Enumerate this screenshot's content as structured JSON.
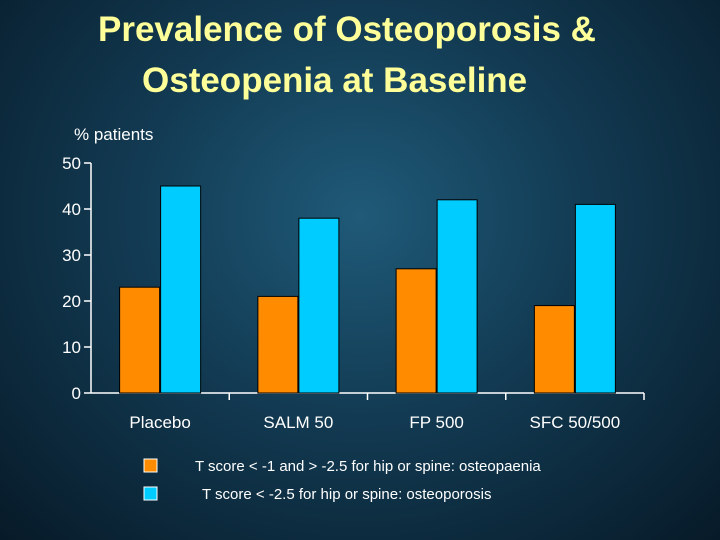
{
  "title": {
    "line1": "Prevalence of Osteoporosis &",
    "line2": "Osteopenia at Baseline"
  },
  "colors": {
    "osteopaenia": "#ff8c00",
    "osteoporosis": "#00ccff",
    "title": "#ffff99",
    "text": "#ffffff"
  },
  "chart_data": {
    "type": "bar",
    "title": "Prevalence of Osteoporosis & Osteopenia at Baseline",
    "ylabel": "% patients",
    "xlabel": "",
    "ylim": [
      0,
      50
    ],
    "yticks": [
      0,
      10,
      20,
      30,
      40,
      50
    ],
    "categories": [
      "Placebo",
      "SALM 50",
      "FP 500",
      "SFC 50/500"
    ],
    "series": [
      {
        "name": "T score < -1 and > -2.5 for hip or spine: osteopaenia",
        "color": "#ff8c00",
        "values": [
          23,
          21,
          27,
          19
        ]
      },
      {
        "name": "T score < -2.5 for hip or spine: osteoporosis",
        "color": "#00ccff",
        "values": [
          45,
          38,
          42,
          41
        ]
      }
    ],
    "grid": false,
    "legend": "bottom"
  }
}
